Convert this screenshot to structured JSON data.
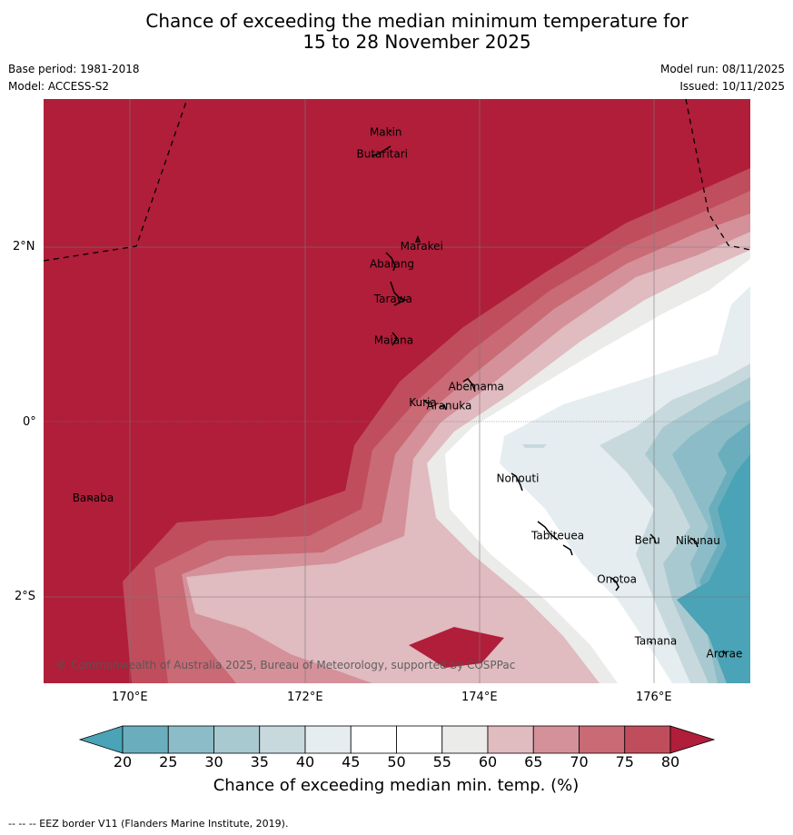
{
  "title": {
    "line1": "Chance of exceeding the median minimum temperature for",
    "line2": "15 to 28 November 2025"
  },
  "meta": {
    "base_period": "Base period: 1981-2018",
    "model": "Model: ACCESS-S2",
    "model_run": "Model run: 08/11/2025",
    "issued": "Issued: 10/11/2025"
  },
  "axes": {
    "lat_ticks": [
      "2°N",
      "0°",
      "2°S"
    ],
    "lon_ticks": [
      "170°E",
      "172°E",
      "174°E",
      "176°E"
    ]
  },
  "islands": [
    {
      "name": "Makin",
      "lon": 172.95,
      "lat": 3.3
    },
    {
      "name": "Butaritari",
      "lon": 172.8,
      "lat": 3.05
    },
    {
      "name": "Marakei",
      "lon": 173.3,
      "lat": 2.0
    },
    {
      "name": "Abaiang",
      "lon": 172.95,
      "lat": 1.8
    },
    {
      "name": "Tarawa",
      "lon": 173.0,
      "lat": 1.4
    },
    {
      "name": "Maiana",
      "lon": 173.0,
      "lat": 0.93
    },
    {
      "name": "Abemama",
      "lon": 173.85,
      "lat": 0.4
    },
    {
      "name": "Kuria",
      "lon": 173.4,
      "lat": 0.22
    },
    {
      "name": "Aranuka",
      "lon": 173.6,
      "lat": 0.18
    },
    {
      "name": "Nonouti",
      "lon": 174.4,
      "lat": -0.65
    },
    {
      "name": "Banaba",
      "lon": 169.55,
      "lat": -0.87
    },
    {
      "name": "Tabiteuea",
      "lon": 174.8,
      "lat": -1.3
    },
    {
      "name": "Beru",
      "lon": 175.98,
      "lat": -1.35
    },
    {
      "name": "Nikunau",
      "lon": 176.45,
      "lat": -1.36
    },
    {
      "name": "Onotoa",
      "lon": 175.55,
      "lat": -1.8
    },
    {
      "name": "Tamana",
      "lon": 175.98,
      "lat": -2.5
    },
    {
      "name": "Arorae",
      "lon": 176.8,
      "lat": -2.65
    }
  ],
  "copyright": "© Commonwealth of Australia 2025, Bureau of Meteorology, supported by COSPPac",
  "colorbar": {
    "ticks": [
      "20",
      "25",
      "30",
      "35",
      "40",
      "45",
      "50",
      "55",
      "60",
      "65",
      "70",
      "75",
      "80"
    ],
    "label": "Chance of exceeding median min. temp. (%)",
    "colors": {
      "below_20": "#4aa3b6",
      "20_25": "#6aaebd",
      "25_30": "#8cbcc7",
      "30_35": "#a9c9d0",
      "35_40": "#c8d9de",
      "40_45": "#e6edf0",
      "45_50": "#ffffff",
      "50_55": "#ffffff",
      "55_60": "#ebebea",
      "60_65": "#e0bbc0",
      "65_70": "#d4919a",
      "70_75": "#c96a75",
      "75_80": "#c04d5c",
      "above_80": "#b01e3a"
    }
  },
  "footer": "--  --  -- EEZ border V11 (Flanders Marine Institute, 2019)."
}
